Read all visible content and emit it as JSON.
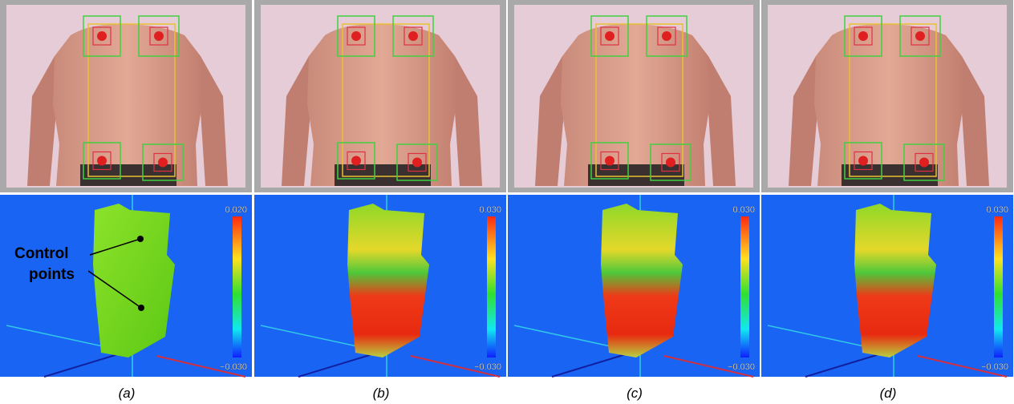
{
  "panels": [
    {
      "label": "(a)",
      "colorbar": {
        "max": "0.020",
        "min": "−0.030"
      }
    },
    {
      "label": "(b)",
      "colorbar": {
        "max": "0.030",
        "min": "−0.030"
      }
    },
    {
      "label": "(c)",
      "colorbar": {
        "max": "0.030",
        "min": "−0.030"
      }
    },
    {
      "label": "(d)",
      "colorbar": {
        "max": "0.030",
        "min": "−0.030"
      }
    }
  ],
  "annotation": {
    "lines": [
      "Control",
      "points"
    ]
  }
}
